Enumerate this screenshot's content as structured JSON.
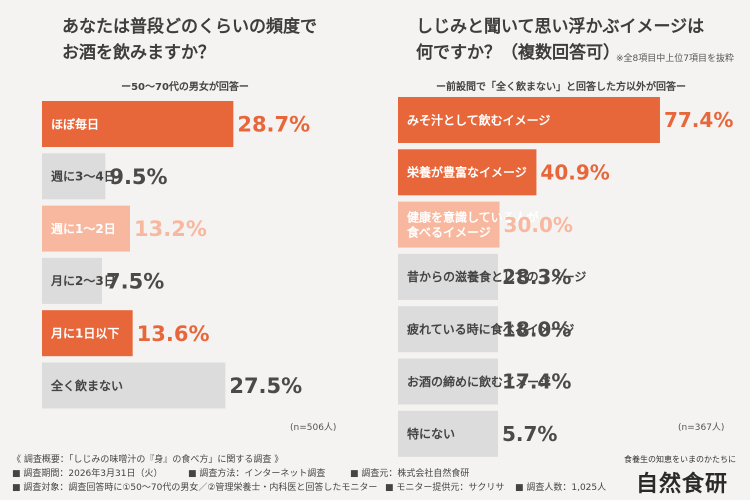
{
  "colors": {
    "accent": "#e8673a",
    "accent_light": "#f8b8a0",
    "gray_bar": "#dcdcdc",
    "value_dark": "#4a4a4a"
  },
  "left": {
    "title_line1": "あなたは普段どのくらいの頻度で",
    "title_line2": "お酒を飲みますか？",
    "subtitle": "ー50～70代の男女が回答ー",
    "n_label": "(n=506人)"
  },
  "right": {
    "title_line1": "しじみと聞いて思い浮かぶイメージは",
    "title_line2": "何ですか？（複数回答可）",
    "note": "※全8項目中上位7項目を抜粋",
    "subtitle": "ー前設問で「全く飲まない」と回答した方以外が回答ー",
    "n_label": "(n=367人)"
  },
  "chart_data": [
    {
      "type": "bar",
      "orientation": "horizontal",
      "unit": "%",
      "categories": [
        "ほぼ毎日",
        "週に3～4日",
        "週に1～2日",
        "月に2～3日",
        "月に1日以下",
        "全く飲まない"
      ],
      "values": [
        28.7,
        9.5,
        13.2,
        7.5,
        13.6,
        27.5
      ],
      "value_labels": [
        "28.7%",
        "9.5%",
        "13.2%",
        "7.5%",
        "13.6%",
        "27.5%"
      ],
      "bar_styles": [
        "accent",
        "gray",
        "light",
        "gray",
        "accent",
        "gray"
      ],
      "xlim": [
        0,
        30
      ]
    },
    {
      "type": "bar",
      "orientation": "horizontal",
      "unit": "%",
      "categories": [
        "みそ汁として飲むイメージ",
        "栄養が豊富なイメージ",
        "健康を意識している人が食べるイメージ",
        "昔からの滋養食としてのイメージ",
        "疲れている時に食べるイメージ",
        "お酒の締めに飲むイメージ",
        "特にない"
      ],
      "label_lines": [
        [
          "みそ汁として飲むイメージ"
        ],
        [
          "栄養が豊富なイメージ"
        ],
        [
          "健康を意識している人が",
          "食べるイメージ"
        ],
        [
          "昔からの滋養食としてのイメージ"
        ],
        [
          "疲れている時に食べるイメージ"
        ],
        [
          "お酒の締めに飲むイメージ"
        ],
        [
          "特にない"
        ]
      ],
      "values": [
        77.4,
        40.9,
        30.0,
        28.3,
        18.0,
        17.4,
        5.7
      ],
      "value_labels": [
        "77.4%",
        "40.9%",
        "30.0%",
        "28.3%",
        "18.0%",
        "17.4%",
        "5.7%"
      ],
      "bar_styles": [
        "accent",
        "accent",
        "light",
        "gray",
        "gray",
        "gray",
        "gray"
      ],
      "xlim": [
        0,
        78
      ]
    }
  ],
  "footer": {
    "line1": "《 調査概要：「しじみの味噌汁の『身』の食べ方」に関する調査 》",
    "period": "■ 調査期間：2026年3月31日（火）",
    "method": "■ 調査方法：インターネット調査",
    "sponsor": "■ 調査元：株式会社自然食研",
    "target": "■ 調査対象：調査回答時に①50～70代の男女／②管理栄養士・内科医と回答したモニター",
    "provider": "■ モニター提供元：サクリサ",
    "count": "■ 調査人数：1,025人"
  },
  "logo": {
    "tagline": "食養生の知恵をいまのかたちに",
    "name": "自然食研"
  }
}
